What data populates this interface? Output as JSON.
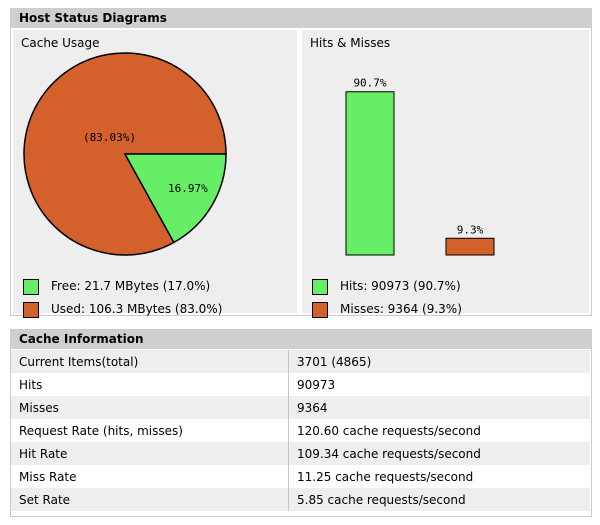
{
  "status_panel": {
    "title": "Host Status Diagrams",
    "cache_usage": {
      "title": "Cache Usage",
      "pie_used_label": "(83.03%)",
      "pie_free_label": "16.97%",
      "legend_free": "Free: 21.7 MBytes (17.0%)",
      "legend_used": "Used: 106.3 MBytes (83.0%)"
    },
    "hits_misses": {
      "title": "Hits & Misses",
      "hits_bar_label": "90.7%",
      "misses_bar_label": "9.3%",
      "legend_hits": "Hits: 90973 (90.7%)",
      "legend_misses": "Misses: 9364 (9.3%)"
    }
  },
  "colors": {
    "free_green": "#66ee66",
    "used_orange": "#d4602c",
    "header_gray": "#cfcfcf",
    "cell_gray": "#eeeeee"
  },
  "chart_data": [
    {
      "type": "pie",
      "title": "Cache Usage",
      "slices": [
        {
          "name": "Used",
          "value": 83.03
        },
        {
          "name": "Free",
          "value": 16.97
        }
      ]
    },
    {
      "type": "bar",
      "title": "Hits & Misses",
      "categories": [
        "Hits",
        "Misses"
      ],
      "values": [
        90.7,
        9.3
      ],
      "ylim": [
        0,
        100
      ]
    }
  ],
  "info_panel": {
    "title": "Cache Information",
    "rows": [
      {
        "label": "Current Items(total)",
        "value": "3701 (4865)"
      },
      {
        "label": "Hits",
        "value": "90973"
      },
      {
        "label": "Misses",
        "value": "9364"
      },
      {
        "label": "Request Rate (hits, misses)",
        "value": "120.60 cache requests/second"
      },
      {
        "label": "Hit Rate",
        "value": "109.34 cache requests/second"
      },
      {
        "label": "Miss Rate",
        "value": "11.25 cache requests/second"
      },
      {
        "label": "Set Rate",
        "value": "5.85 cache requests/second"
      }
    ]
  }
}
